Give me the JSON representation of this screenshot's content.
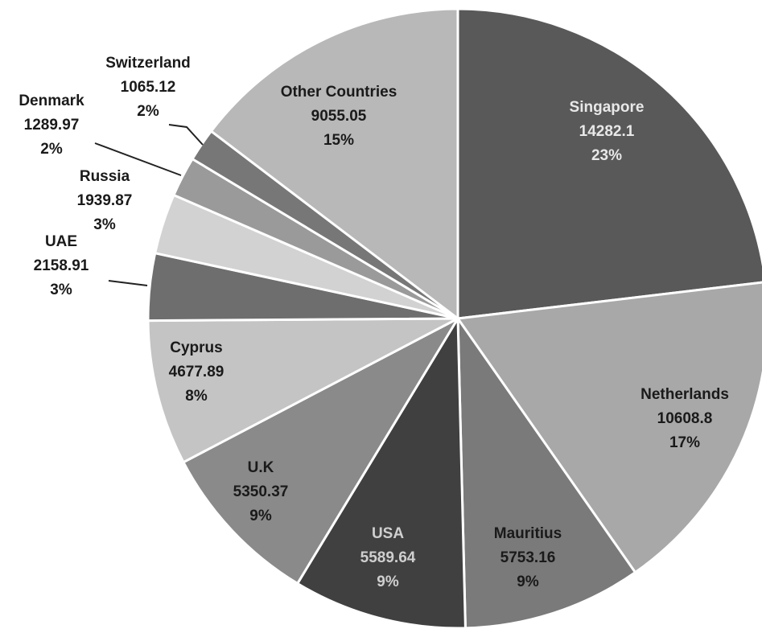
{
  "chart_data": {
    "type": "pie",
    "start": "12 o'clock",
    "direction": "clockwise",
    "legend": "none",
    "slices": [
      {
        "label": "Singapore",
        "value": 14282.1,
        "percent": "23%",
        "color": "#595959",
        "text_color": "#e8e8e8"
      },
      {
        "label": "Netherlands",
        "value": 10608.8,
        "percent": "17%",
        "color": "#a8a8a8",
        "text_color": "#1a1a1a"
      },
      {
        "label": "Mauritius",
        "value": 5753.16,
        "percent": "9%",
        "color": "#7a7a7a",
        "text_color": "#1a1a1a"
      },
      {
        "label": "USA",
        "value": 5589.64,
        "percent": "9%",
        "color": "#404040",
        "text_color": "#cfcfcf"
      },
      {
        "label": "U.K",
        "value": 5350.37,
        "percent": "9%",
        "color": "#8a8a8a",
        "text_color": "#1a1a1a"
      },
      {
        "label": "Cyprus",
        "value": 4677.89,
        "percent": "8%",
        "color": "#c4c4c4",
        "text_color": "#1a1a1a"
      },
      {
        "label": "UAE",
        "value": 2158.91,
        "percent": "3%",
        "color": "#6e6e6e",
        "text_color": "#1a1a1a"
      },
      {
        "label": "Russia",
        "value": 1939.87,
        "percent": "3%",
        "color": "#d2d2d2",
        "text_color": "#1a1a1a"
      },
      {
        "label": "Denmark",
        "value": 1289.97,
        "percent": "2%",
        "color": "#9a9a9a",
        "text_color": "#1a1a1a"
      },
      {
        "label": "Switzerland",
        "value": 1065.12,
        "percent": "2%",
        "color": "#777777",
        "text_color": "#1a1a1a"
      },
      {
        "label": "Other Countries",
        "value": 9055.05,
        "percent": "15%",
        "color": "#b8b8b8",
        "text_color": "#1a1a1a"
      }
    ]
  }
}
